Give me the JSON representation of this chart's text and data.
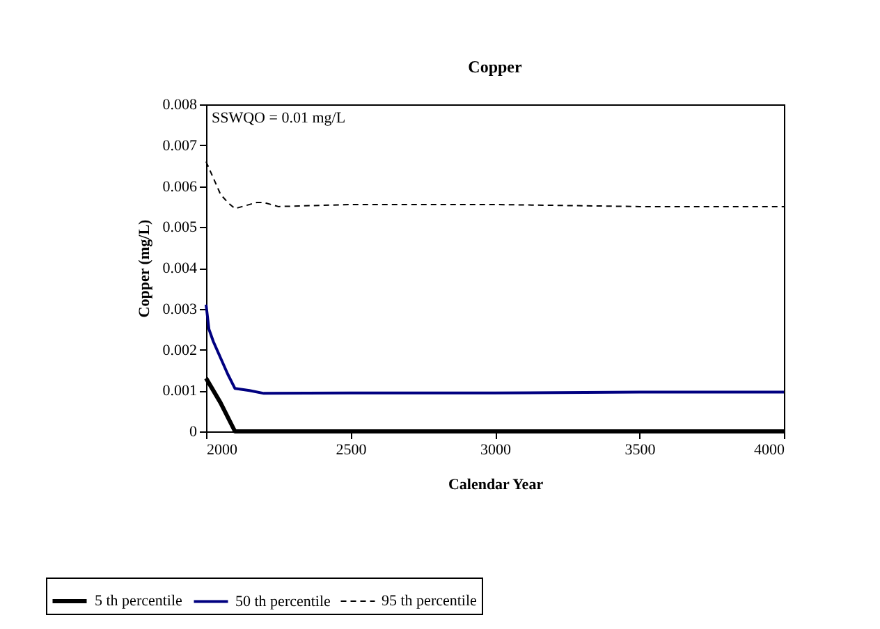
{
  "chart_data": {
    "type": "line",
    "title": "Copper",
    "xlabel": "Calendar Year",
    "ylabel": "Copper (mg/L)",
    "annotations": [
      "SSWQO = 0.01 mg/L"
    ],
    "xlim": [
      2000,
      4000
    ],
    "xticks": [
      2000,
      2500,
      3000,
      3500,
      4000
    ],
    "ylim": [
      0,
      0.008
    ],
    "yticks": [
      0,
      0.001,
      0.002,
      0.003,
      0.004,
      0.005,
      0.006,
      0.007,
      0.008
    ],
    "grid": false,
    "legend": "bottom",
    "marker": "none",
    "series": [
      {
        "name": "5 th percentile",
        "color": "#000000",
        "line_style": "solid",
        "x": [
          2000,
          2050,
          2100,
          2200,
          2500,
          3000,
          3500,
          4000
        ],
        "values": [
          0.0013,
          0.0007,
          0,
          0,
          0,
          0,
          0,
          0
        ]
      },
      {
        "name": "50 th percentile",
        "color": "#000080",
        "line_style": "solid",
        "x": [
          2000,
          2010,
          2025,
          2050,
          2075,
          2100,
          2150,
          2200,
          2500,
          3000,
          3500,
          4000
        ],
        "values": [
          0.0031,
          0.0025,
          0.0022,
          0.0018,
          0.0014,
          0.00105,
          0.001,
          0.00093,
          0.00094,
          0.00094,
          0.00096,
          0.00096
        ]
      },
      {
        "name": "95 th percentile",
        "color": "#000000",
        "line_style": "dashed",
        "x": [
          2000,
          2025,
          2050,
          2075,
          2100,
          2125,
          2175,
          2200,
          2250,
          2500,
          3000,
          3500,
          4000
        ],
        "values": [
          0.0066,
          0.0062,
          0.0058,
          0.0056,
          0.00545,
          0.0055,
          0.0056,
          0.0056,
          0.0055,
          0.00555,
          0.00555,
          0.0055,
          0.0055
        ]
      }
    ]
  }
}
